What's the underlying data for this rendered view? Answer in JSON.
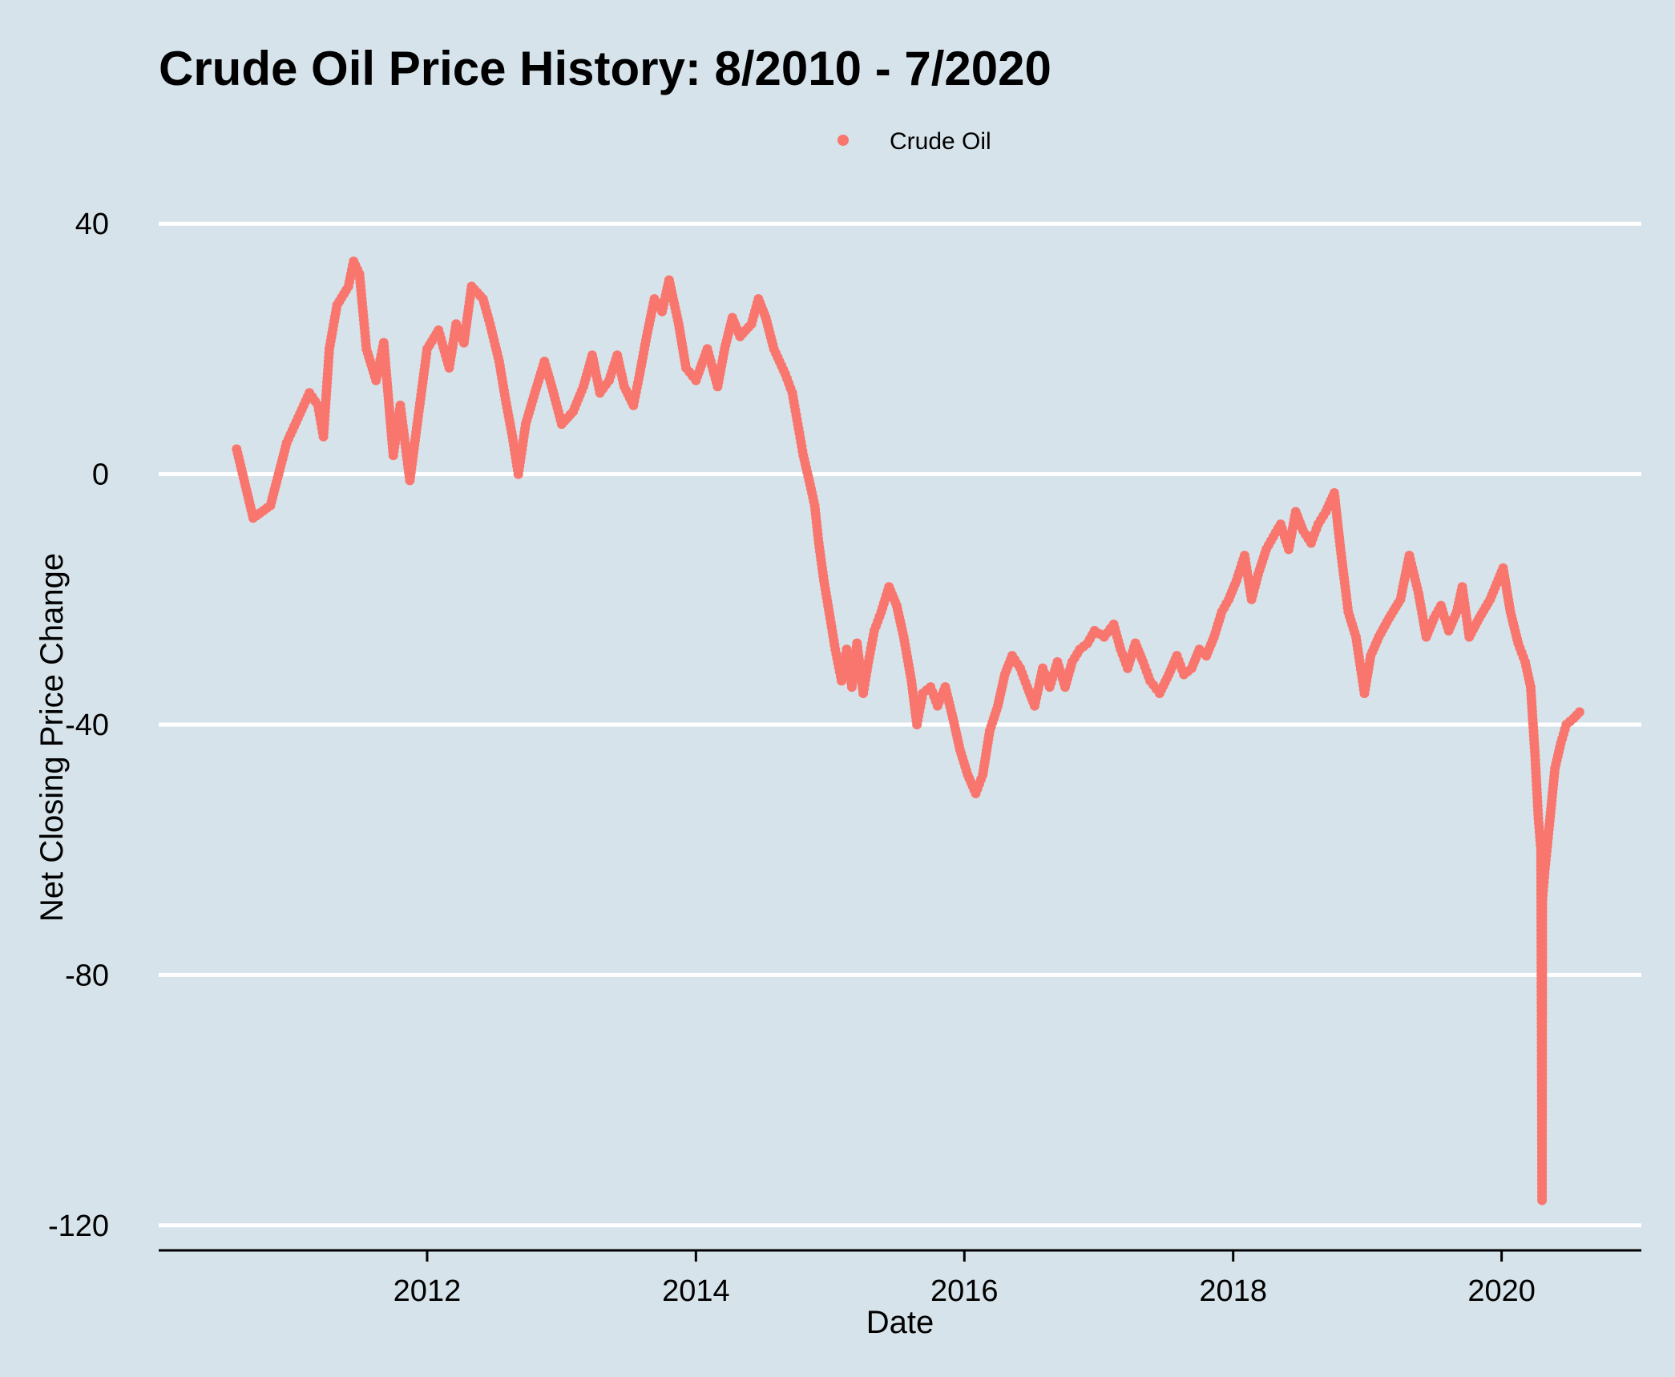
{
  "chart_data": {
    "type": "scatter",
    "title": "Crude Oil Price History: 8/2010 - 7/2020",
    "xlabel": "Date",
    "ylabel": "Net Closing Price Change",
    "xlim": [
      "2010-01-01",
      "2021-01-15"
    ],
    "ylim": [
      -124,
      44
    ],
    "x_ticks": [
      "2012",
      "2014",
      "2016",
      "2018",
      "2020"
    ],
    "y_ticks": [
      40,
      0,
      -40,
      -80,
      -120
    ],
    "grid": "horizontal major lines",
    "legend_position": "top",
    "colors": {
      "background": "#d6e3ea",
      "series": "#f8766d",
      "grid": "#ffffff",
      "axis": "#000000"
    },
    "series": [
      {
        "name": "Crude Oil",
        "points": [
          [
            "2010-08-01",
            4
          ],
          [
            "2010-09-15",
            -7
          ],
          [
            "2010-11-01",
            -5
          ],
          [
            "2010-12-15",
            5
          ],
          [
            "2011-01-15",
            9
          ],
          [
            "2011-02-15",
            13
          ],
          [
            "2011-03-10",
            11
          ],
          [
            "2011-03-25",
            6
          ],
          [
            "2011-04-10",
            20
          ],
          [
            "2011-05-01",
            27
          ],
          [
            "2011-06-01",
            30
          ],
          [
            "2011-06-15",
            34
          ],
          [
            "2011-07-01",
            32
          ],
          [
            "2011-07-20",
            20
          ],
          [
            "2011-08-15",
            15
          ],
          [
            "2011-09-05",
            21
          ],
          [
            "2011-10-01",
            3
          ],
          [
            "2011-10-20",
            11
          ],
          [
            "2011-11-15",
            -1
          ],
          [
            "2011-12-05",
            8
          ],
          [
            "2012-01-01",
            20
          ],
          [
            "2012-02-01",
            23
          ],
          [
            "2012-03-01",
            17
          ],
          [
            "2012-03-20",
            24
          ],
          [
            "2012-04-10",
            21
          ],
          [
            "2012-05-01",
            30
          ],
          [
            "2012-06-01",
            28
          ],
          [
            "2012-06-20",
            24
          ],
          [
            "2012-07-15",
            18
          ],
          [
            "2012-08-01",
            12
          ],
          [
            "2012-08-20",
            6
          ],
          [
            "2012-09-05",
            0
          ],
          [
            "2012-09-25",
            8
          ],
          [
            "2012-10-20",
            13
          ],
          [
            "2012-11-15",
            18
          ],
          [
            "2012-12-05",
            14
          ],
          [
            "2013-01-01",
            8
          ],
          [
            "2013-02-01",
            10
          ],
          [
            "2013-03-01",
            14
          ],
          [
            "2013-03-25",
            19
          ],
          [
            "2013-04-15",
            13
          ],
          [
            "2013-05-10",
            15
          ],
          [
            "2013-06-01",
            19
          ],
          [
            "2013-06-20",
            14
          ],
          [
            "2013-07-15",
            11
          ],
          [
            "2013-08-01",
            16
          ],
          [
            "2013-08-20",
            22
          ],
          [
            "2013-09-10",
            28
          ],
          [
            "2013-10-01",
            26
          ],
          [
            "2013-10-20",
            31
          ],
          [
            "2013-11-15",
            24
          ],
          [
            "2013-12-05",
            17
          ],
          [
            "2014-01-01",
            15
          ],
          [
            "2014-02-01",
            20
          ],
          [
            "2014-03-01",
            14
          ],
          [
            "2014-03-20",
            20
          ],
          [
            "2014-04-10",
            25
          ],
          [
            "2014-05-01",
            22
          ],
          [
            "2014-06-01",
            24
          ],
          [
            "2014-06-20",
            28
          ],
          [
            "2014-07-10",
            25
          ],
          [
            "2014-08-01",
            20
          ],
          [
            "2014-09-01",
            16
          ],
          [
            "2014-09-20",
            13
          ],
          [
            "2014-10-05",
            8
          ],
          [
            "2014-10-20",
            3
          ],
          [
            "2014-11-05",
            -1
          ],
          [
            "2014-11-20",
            -5
          ],
          [
            "2014-12-01",
            -11
          ],
          [
            "2014-12-15",
            -17
          ],
          [
            "2015-01-01",
            -23
          ],
          [
            "2015-01-15",
            -28
          ],
          [
            "2015-02-01",
            -33
          ],
          [
            "2015-02-15",
            -28
          ],
          [
            "2015-03-01",
            -34
          ],
          [
            "2015-03-15",
            -27
          ],
          [
            "2015-04-01",
            -35
          ],
          [
            "2015-04-15",
            -30
          ],
          [
            "2015-05-01",
            -25
          ],
          [
            "2015-05-20",
            -22
          ],
          [
            "2015-06-10",
            -18
          ],
          [
            "2015-07-01",
            -21
          ],
          [
            "2015-07-20",
            -26
          ],
          [
            "2015-08-10",
            -33
          ],
          [
            "2015-08-25",
            -40
          ],
          [
            "2015-09-10",
            -35
          ],
          [
            "2015-10-01",
            -34
          ],
          [
            "2015-10-20",
            -37
          ],
          [
            "2015-11-10",
            -34
          ],
          [
            "2015-12-01",
            -39
          ],
          [
            "2015-12-20",
            -44
          ],
          [
            "2016-01-10",
            -48
          ],
          [
            "2016-02-01",
            -51
          ],
          [
            "2016-02-20",
            -48
          ],
          [
            "2016-03-10",
            -41
          ],
          [
            "2016-04-01",
            -37
          ],
          [
            "2016-04-20",
            -32
          ],
          [
            "2016-05-10",
            -29
          ],
          [
            "2016-06-01",
            -31
          ],
          [
            "2016-06-20",
            -34
          ],
          [
            "2016-07-10",
            -37
          ],
          [
            "2016-08-01",
            -31
          ],
          [
            "2016-08-20",
            -34
          ],
          [
            "2016-09-10",
            -30
          ],
          [
            "2016-10-01",
            -34
          ],
          [
            "2016-10-20",
            -30
          ],
          [
            "2016-11-10",
            -28
          ],
          [
            "2016-12-01",
            -27
          ],
          [
            "2016-12-20",
            -25
          ],
          [
            "2017-01-15",
            -26
          ],
          [
            "2017-02-10",
            -24
          ],
          [
            "2017-03-01",
            -28
          ],
          [
            "2017-03-20",
            -31
          ],
          [
            "2017-04-10",
            -27
          ],
          [
            "2017-05-01",
            -30
          ],
          [
            "2017-05-20",
            -33
          ],
          [
            "2017-06-15",
            -35
          ],
          [
            "2017-07-10",
            -32
          ],
          [
            "2017-08-01",
            -29
          ],
          [
            "2017-08-20",
            -32
          ],
          [
            "2017-09-10",
            -31
          ],
          [
            "2017-10-01",
            -28
          ],
          [
            "2017-10-20",
            -29
          ],
          [
            "2017-11-10",
            -26
          ],
          [
            "2017-12-01",
            -22
          ],
          [
            "2017-12-20",
            -20
          ],
          [
            "2018-01-10",
            -17
          ],
          [
            "2018-02-01",
            -13
          ],
          [
            "2018-02-20",
            -20
          ],
          [
            "2018-03-10",
            -16
          ],
          [
            "2018-04-01",
            -12
          ],
          [
            "2018-04-20",
            -10
          ],
          [
            "2018-05-10",
            -8
          ],
          [
            "2018-06-01",
            -12
          ],
          [
            "2018-06-20",
            -6
          ],
          [
            "2018-07-10",
            -9
          ],
          [
            "2018-08-01",
            -11
          ],
          [
            "2018-08-20",
            -8
          ],
          [
            "2018-09-10",
            -6
          ],
          [
            "2018-10-03",
            -3
          ],
          [
            "2018-10-20",
            -12
          ],
          [
            "2018-11-10",
            -22
          ],
          [
            "2018-12-01",
            -26
          ],
          [
            "2018-12-24",
            -35
          ],
          [
            "2019-01-10",
            -29
          ],
          [
            "2019-02-01",
            -26
          ],
          [
            "2019-03-01",
            -23
          ],
          [
            "2019-04-01",
            -20
          ],
          [
            "2019-04-25",
            -13
          ],
          [
            "2019-05-20",
            -19
          ],
          [
            "2019-06-10",
            -26
          ],
          [
            "2019-07-01",
            -23
          ],
          [
            "2019-07-20",
            -21
          ],
          [
            "2019-08-10",
            -25
          ],
          [
            "2019-09-01",
            -22
          ],
          [
            "2019-09-16",
            -18
          ],
          [
            "2019-10-05",
            -26
          ],
          [
            "2019-11-01",
            -23
          ],
          [
            "2019-12-01",
            -20
          ],
          [
            "2020-01-05",
            -15
          ],
          [
            "2020-01-25",
            -22
          ],
          [
            "2020-02-15",
            -27
          ],
          [
            "2020-03-05",
            -30
          ],
          [
            "2020-03-20",
            -34
          ],
          [
            "2020-04-01",
            -45
          ],
          [
            "2020-04-10",
            -55
          ],
          [
            "2020-04-17",
            -60
          ],
          [
            "2020-04-20",
            -116
          ],
          [
            "2020-04-21",
            -68
          ],
          [
            "2020-04-28",
            -63
          ],
          [
            "2020-05-10",
            -56
          ],
          [
            "2020-05-25",
            -47
          ],
          [
            "2020-06-10",
            -43
          ],
          [
            "2020-06-25",
            -40
          ],
          [
            "2020-07-15",
            -39
          ],
          [
            "2020-07-31",
            -38
          ]
        ]
      }
    ]
  }
}
